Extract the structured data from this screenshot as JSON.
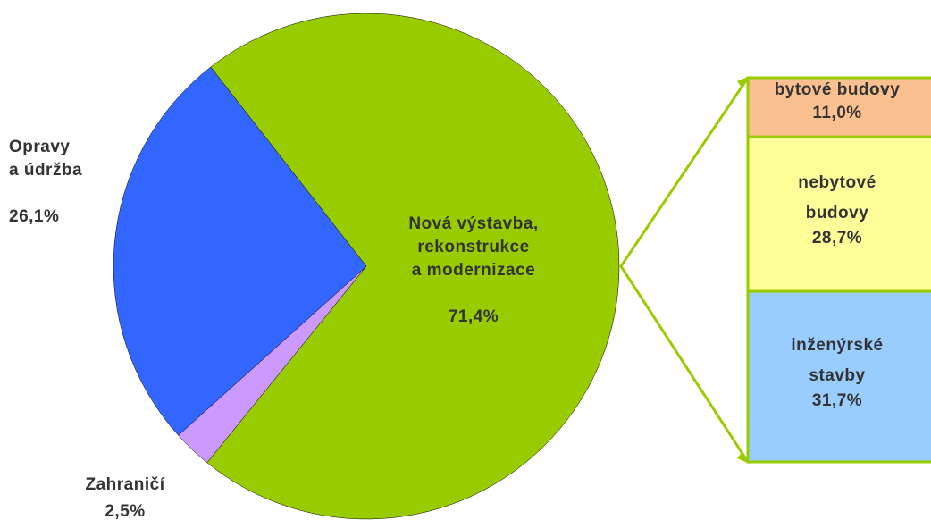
{
  "chart_data": {
    "type": "pie",
    "categories": [
      "Nová výstavba,\nrekonstrukce\na modernizace",
      "Zahraničí",
      "Opravy\na údržba"
    ],
    "values": [
      71.4,
      2.5,
      26.1
    ],
    "value_labels": [
      "71,4%",
      "2,5%",
      "26,1%"
    ],
    "colors": [
      "#99cc00",
      "#cc99ff",
      "#3366ff"
    ],
    "breakdown": {
      "categories": [
        "bytové budovy",
        "nebytové\nbudovy",
        "inženýrské\nstavby"
      ],
      "values": [
        11.0,
        28.7,
        31.7
      ],
      "value_labels": [
        "11,0%",
        "28,7%",
        "31,7%"
      ],
      "colors": [
        "#fac090",
        "#ffff99",
        "#99ccff"
      ]
    }
  }
}
